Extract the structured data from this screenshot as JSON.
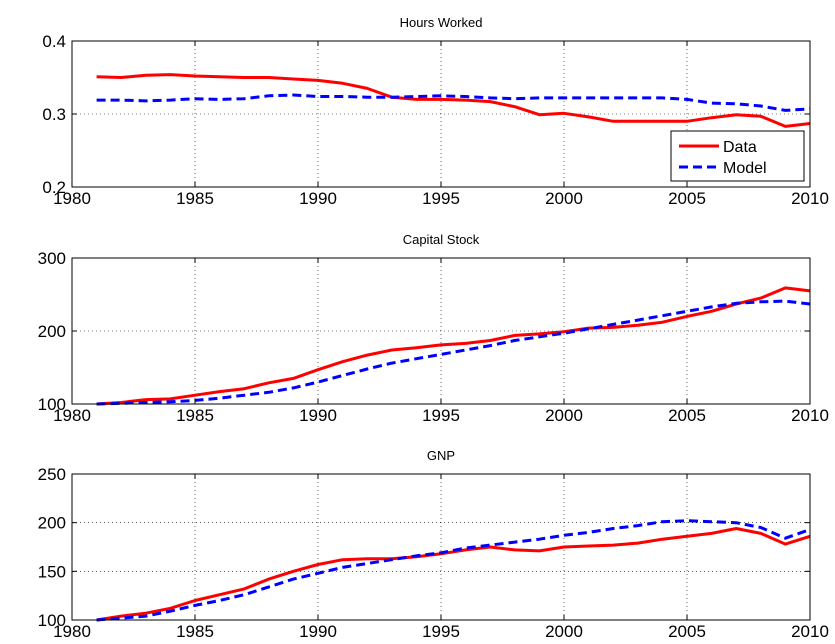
{
  "chart_data": [
    {
      "type": "line",
      "title": "Hours Worked",
      "xlim": [
        1980,
        2010
      ],
      "ylim": [
        0.2,
        0.4
      ],
      "xticks": [
        "1980",
        "1985",
        "1990",
        "1995",
        "2000",
        "2005",
        "2010"
      ],
      "yticks": [
        "0.2",
        "0.3",
        "0.4"
      ],
      "grid": true,
      "legend": "bottom-right",
      "x": [
        1981,
        1982,
        1983,
        1984,
        1985,
        1986,
        1987,
        1988,
        1989,
        1990,
        1991,
        1992,
        1993,
        1994,
        1995,
        1996,
        1997,
        1998,
        1999,
        2000,
        2001,
        2002,
        2003,
        2004,
        2005,
        2006,
        2007,
        2008,
        2009,
        2010
      ],
      "series": [
        {
          "name": "Data",
          "color": "#ff0000",
          "dash": "solid",
          "values": [
            0.351,
            0.35,
            0.353,
            0.354,
            0.352,
            0.351,
            0.35,
            0.35,
            0.348,
            0.346,
            0.342,
            0.335,
            0.323,
            0.32,
            0.32,
            0.319,
            0.317,
            0.31,
            0.299,
            0.301,
            0.296,
            0.29,
            0.29,
            0.29,
            0.29,
            0.295,
            0.299,
            0.297,
            0.283,
            0.287
          ]
        },
        {
          "name": "Model",
          "color": "#0000ff",
          "dash": "dashed",
          "values": [
            0.319,
            0.319,
            0.318,
            0.319,
            0.321,
            0.32,
            0.321,
            0.325,
            0.326,
            0.324,
            0.324,
            0.323,
            0.323,
            0.324,
            0.325,
            0.324,
            0.322,
            0.321,
            0.322,
            0.322,
            0.322,
            0.322,
            0.322,
            0.322,
            0.32,
            0.315,
            0.314,
            0.311,
            0.305,
            0.307
          ]
        }
      ]
    },
    {
      "type": "line",
      "title": "Capital Stock",
      "xlim": [
        1980,
        2010
      ],
      "ylim": [
        100,
        300
      ],
      "xticks": [
        "1980",
        "1985",
        "1990",
        "1995",
        "2000",
        "2005",
        "2010"
      ],
      "yticks": [
        "100",
        "200",
        "300"
      ],
      "grid": true,
      "x": [
        1981,
        1982,
        1983,
        1984,
        1985,
        1986,
        1987,
        1988,
        1989,
        1990,
        1991,
        1992,
        1993,
        1994,
        1995,
        1996,
        1997,
        1998,
        1999,
        2000,
        2001,
        2002,
        2003,
        2004,
        2005,
        2006,
        2007,
        2008,
        2009,
        2010
      ],
      "series": [
        {
          "name": "Data",
          "color": "#ff0000",
          "dash": "solid",
          "values": [
            100,
            102,
            106,
            107,
            112,
            117,
            121,
            129,
            135,
            147,
            158,
            167,
            174,
            177,
            181,
            183,
            187,
            194,
            196,
            199,
            204,
            205,
            208,
            212,
            220,
            227,
            237,
            245,
            259,
            255
          ]
        },
        {
          "name": "Model",
          "color": "#0000ff",
          "dash": "dashed",
          "values": [
            100,
            101,
            102,
            103,
            105,
            108,
            112,
            116,
            122,
            130,
            139,
            148,
            156,
            162,
            168,
            174,
            180,
            187,
            192,
            197,
            203,
            209,
            215,
            221,
            227,
            233,
            238,
            240,
            241,
            237
          ]
        }
      ]
    },
    {
      "type": "line",
      "title": "GNP",
      "xlim": [
        1980,
        2010
      ],
      "ylim": [
        100,
        250
      ],
      "xticks": [
        "1980",
        "1985",
        "1990",
        "1995",
        "2000",
        "2005",
        "2010"
      ],
      "yticks": [
        "100",
        "150",
        "200",
        "250"
      ],
      "grid": true,
      "x": [
        1981,
        1982,
        1983,
        1984,
        1985,
        1986,
        1987,
        1988,
        1989,
        1990,
        1991,
        1992,
        1993,
        1994,
        1995,
        1996,
        1997,
        1998,
        1999,
        2000,
        2001,
        2002,
        2003,
        2004,
        2005,
        2006,
        2007,
        2008,
        2009,
        2010
      ],
      "series": [
        {
          "name": "Data",
          "color": "#ff0000",
          "dash": "solid",
          "values": [
            100,
            104,
            107,
            112,
            120,
            126,
            132,
            142,
            150,
            157,
            162,
            163,
            163,
            165,
            168,
            172,
            175,
            172,
            171,
            175,
            176,
            177,
            179,
            183,
            186,
            189,
            194,
            189,
            178,
            186
          ]
        },
        {
          "name": "Model",
          "color": "#0000ff",
          "dash": "dashed",
          "values": [
            100,
            102,
            104,
            109,
            115,
            120,
            126,
            134,
            142,
            148,
            154,
            158,
            162,
            166,
            169,
            174,
            177,
            180,
            183,
            187,
            190,
            194,
            197,
            201,
            202,
            201,
            200,
            195,
            184,
            193
          ]
        }
      ]
    }
  ]
}
